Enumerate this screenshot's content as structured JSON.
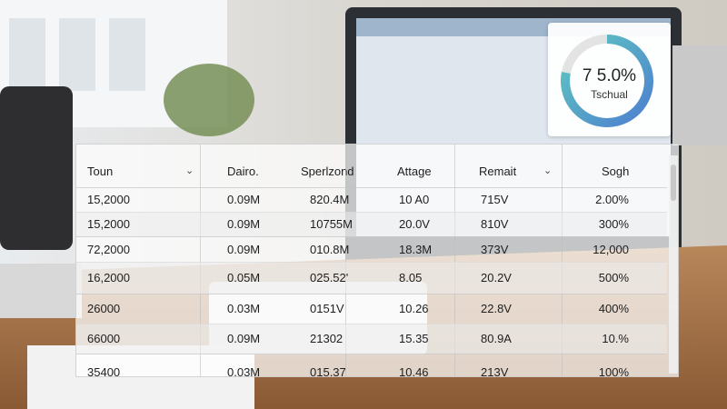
{
  "widget": {
    "value_label": "7 5.0%",
    "caption": "Tschual"
  },
  "table": {
    "headers": [
      "Toun",
      "Dairo.",
      "Sperlzond",
      "Attage",
      "Remait",
      "Sogh"
    ],
    "rows": [
      [
        "15,2000",
        "0.09M",
        "820.4M",
        "10 A0",
        "715V",
        "2.00%"
      ],
      [
        "15,2000",
        "0.09M",
        "10755M",
        "20.0V",
        "810V",
        "300%"
      ],
      [
        "72,2000",
        "0.09M",
        "010.8M",
        "18.3M",
        "373V",
        "12,000"
      ],
      [
        "16,2000",
        "0.05M",
        "025.52'",
        "8.05",
        "20.2V",
        "500%"
      ],
      [
        "26000",
        "0.03M",
        "0151V",
        "10.26",
        "22.8V",
        "400%"
      ],
      [
        "66000",
        "0.09M",
        "21302",
        "15.35",
        "80.9A",
        "10.%"
      ],
      [
        "35400",
        "0.03M",
        "015.37",
        "10.46",
        "213V",
        "100%"
      ]
    ]
  }
}
